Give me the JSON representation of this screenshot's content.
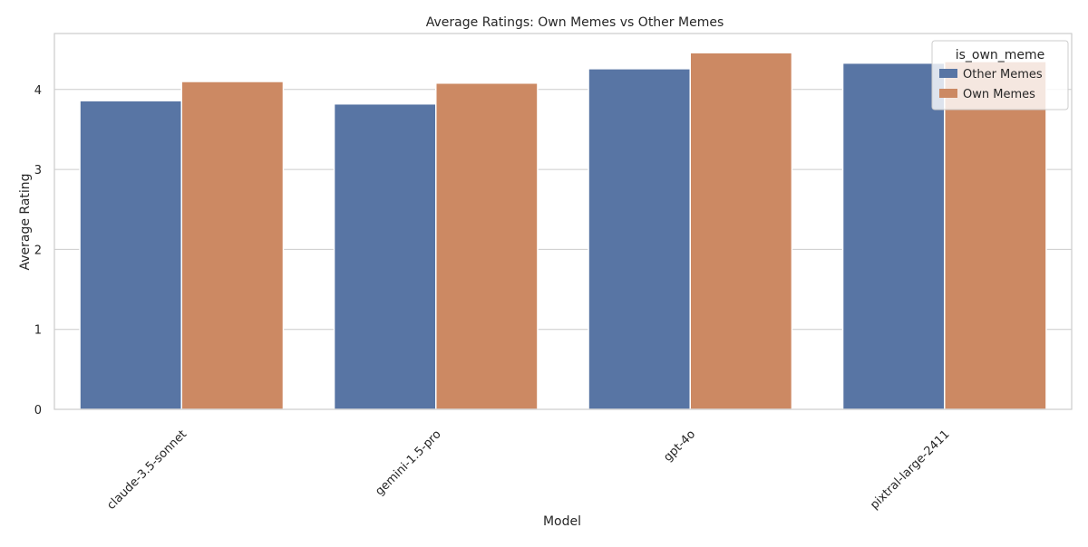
{
  "chart_data": {
    "type": "bar",
    "title": "Average Ratings: Own Memes vs Other Memes",
    "xlabel": "Model",
    "ylabel": "Average Rating",
    "categories": [
      "claude-3.5-sonnet",
      "gemini-1.5-pro",
      "gpt-4o",
      "pixtral-large-2411"
    ],
    "series": [
      {
        "name": "Other Memes",
        "color": "#5875a4",
        "values": [
          3.86,
          3.82,
          4.26,
          4.33
        ]
      },
      {
        "name": "Own Memes",
        "color": "#cc8963",
        "values": [
          4.1,
          4.08,
          4.46,
          4.35
        ]
      }
    ],
    "ylim": [
      0,
      4.7
    ],
    "yticks": [
      0,
      1,
      2,
      3,
      4
    ],
    "grid": true,
    "legend": {
      "title": "is_own_meme",
      "position": "top-right"
    }
  }
}
